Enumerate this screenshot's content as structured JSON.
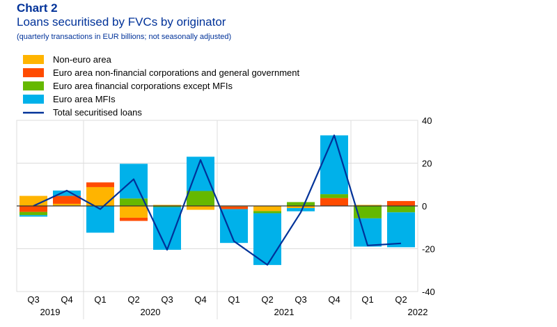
{
  "chart_number": "Chart 2",
  "title": "Loans securitised by FVCs by originator",
  "subtitle": "(quarterly transactions in EUR billions; not seasonally adjusted)",
  "chart_data": {
    "type": "bar",
    "stacked": true,
    "categories": [
      "Q3",
      "Q4",
      "Q1",
      "Q2",
      "Q3",
      "Q4",
      "Q1",
      "Q2",
      "Q3",
      "Q4",
      "Q1",
      "Q2"
    ],
    "years": [
      {
        "label": "2019",
        "start": 0,
        "end": 1
      },
      {
        "label": "2020",
        "start": 2,
        "end": 5
      },
      {
        "label": "2021",
        "start": 6,
        "end": 9
      },
      {
        "label": "2022",
        "start": 10,
        "end": 11
      }
    ],
    "ylim": [
      -40,
      40
    ],
    "yticks": [
      -40,
      -20,
      0,
      20,
      40
    ],
    "grid": true,
    "legend_position": "top-left",
    "series": [
      {
        "name": "Non-euro area",
        "color": "#ffb400",
        "values": [
          4.7,
          1.0,
          8.8,
          -5.5,
          0.5,
          -1.8,
          -0.3,
          -2.4,
          -1.0,
          0.0,
          0.5,
          0.0
        ]
      },
      {
        "name": "Euro area non-financial corporations and general government",
        "color": "#ff4b00",
        "values": [
          -2.8,
          3.7,
          2.2,
          -1.5,
          0.0,
          0.0,
          -1.2,
          0.0,
          0.0,
          3.7,
          0.0,
          2.3
        ]
      },
      {
        "name": "Euro area financial corporations except MFIs",
        "color": "#65b800",
        "values": [
          -1.5,
          0.0,
          0.0,
          3.5,
          -0.5,
          7.0,
          0.0,
          -1.0,
          1.8,
          1.8,
          -5.8,
          -3.0
        ]
      },
      {
        "name": "Euro area MFIs",
        "color": "#00b1ea",
        "values": [
          -0.7,
          2.5,
          -12.5,
          16.2,
          -20.0,
          16.0,
          -15.8,
          -24.2,
          -1.5,
          27.5,
          -13.2,
          -16.3
        ]
      }
    ],
    "line": {
      "name": "Total securitised loans",
      "color": "#003299",
      "values": [
        0.0,
        7.2,
        -1.5,
        12.5,
        -20.5,
        21.5,
        -16.5,
        -27.5,
        -3.0,
        33.0,
        -18.5,
        -17.5
      ]
    }
  }
}
